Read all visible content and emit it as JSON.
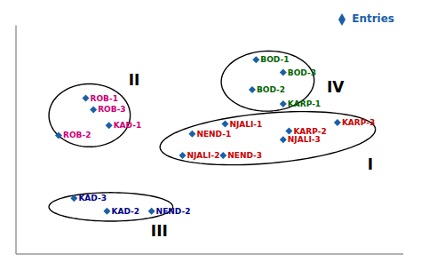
{
  "chart_data": {
    "type": "scatter",
    "xlim": [
      -4.2,
      5.8
    ],
    "ylim": [
      -3.0,
      5.0
    ],
    "tick_labels": false,
    "legend": "upper right",
    "series": [
      {
        "name": "Entries",
        "color": "#1a5fa8",
        "marker": "diamond",
        "x": [
          2.0,
          2.7,
          1.9,
          2.7,
          -2.4,
          -2.2,
          -1.8,
          -3.1,
          1.2,
          0.35,
          2.85,
          4.1,
          2.7,
          0.1,
          1.15,
          -2.7,
          -1.85,
          -0.7
        ],
        "y": [
          3.8,
          3.35,
          2.75,
          2.25,
          2.45,
          2.05,
          1.5,
          1.15,
          1.55,
          1.2,
          1.3,
          1.6,
          1.0,
          0.45,
          0.45,
          -1.05,
          -1.5,
          -1.5
        ],
        "point_labels": [
          "BOD-1",
          "BOD-3",
          "BOD-2",
          "KARP-1",
          "ROB-1",
          "ROB-3",
          "KAD-1",
          "ROB-2",
          "NJALI-1",
          "NEND-1",
          "KARP-2",
          "KARP-3",
          "NJALI-3",
          "NJALI-2",
          "NEND-3",
          "KAD-3",
          "KAD-2",
          "NEND-2"
        ],
        "label_colors": [
          "#006400",
          "#006400",
          "#006400",
          "#006400",
          "#cc0077",
          "#cc0077",
          "#cc0077",
          "#cc0077",
          "#cc0000",
          "#cc0000",
          "#cc0000",
          "#cc0000",
          "#cc0000",
          "#cc0000",
          "#cc0000",
          "#00008B",
          "#00008B",
          "#00008B"
        ]
      }
    ],
    "ellipses": [
      {
        "cx": 2.3,
        "cy": 3.05,
        "width": 2.4,
        "height": 2.1,
        "angle": 5,
        "color": "#000000",
        "label": "IV",
        "label_x": 4.05,
        "label_y": 2.85
      },
      {
        "cx": -2.3,
        "cy": 1.85,
        "width": 2.1,
        "height": 2.2,
        "angle": 0,
        "color": "#000000",
        "label": "II",
        "label_x": -1.15,
        "label_y": 3.1
      },
      {
        "cx": 2.3,
        "cy": 1.05,
        "width": 5.6,
        "height": 1.75,
        "angle": 7,
        "color": "#000000",
        "label": "I",
        "label_x": 4.95,
        "label_y": 0.15
      },
      {
        "cx": -1.75,
        "cy": -1.35,
        "width": 3.2,
        "height": 1.0,
        "angle": 0,
        "color": "#000000",
        "label": "III",
        "label_x": -0.5,
        "label_y": -2.2
      }
    ]
  }
}
